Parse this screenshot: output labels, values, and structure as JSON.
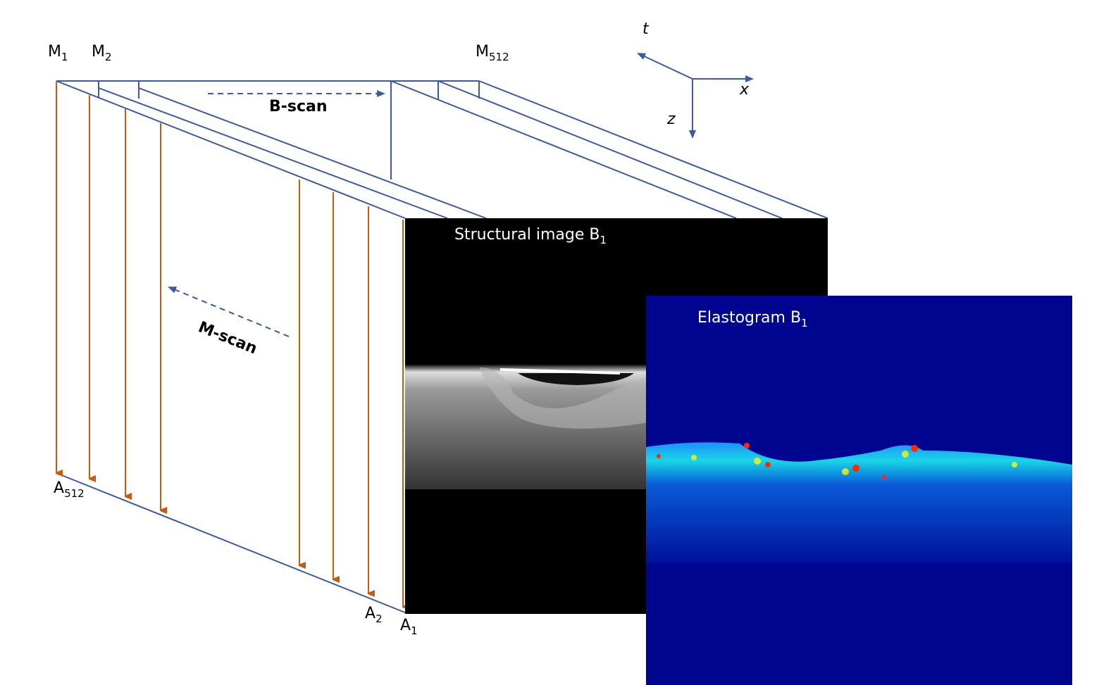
{
  "axes": {
    "t": "t",
    "x": "x",
    "z": "z"
  },
  "m_labels": [
    {
      "base": "M",
      "sub": "1"
    },
    {
      "base": "M",
      "sub": "2"
    },
    {
      "base": "M",
      "sub": "512"
    }
  ],
  "a_labels": [
    {
      "base": "A",
      "sub": "512"
    },
    {
      "base": "A",
      "sub": "2"
    },
    {
      "base": "A",
      "sub": "1"
    }
  ],
  "arrows": {
    "b_scan": "B-scan",
    "m_scan": "M-scan"
  },
  "images": {
    "structural": {
      "base": "Structural image B",
      "sub": "1"
    },
    "elastogram": {
      "base": "Elastogram B",
      "sub": "1"
    }
  }
}
